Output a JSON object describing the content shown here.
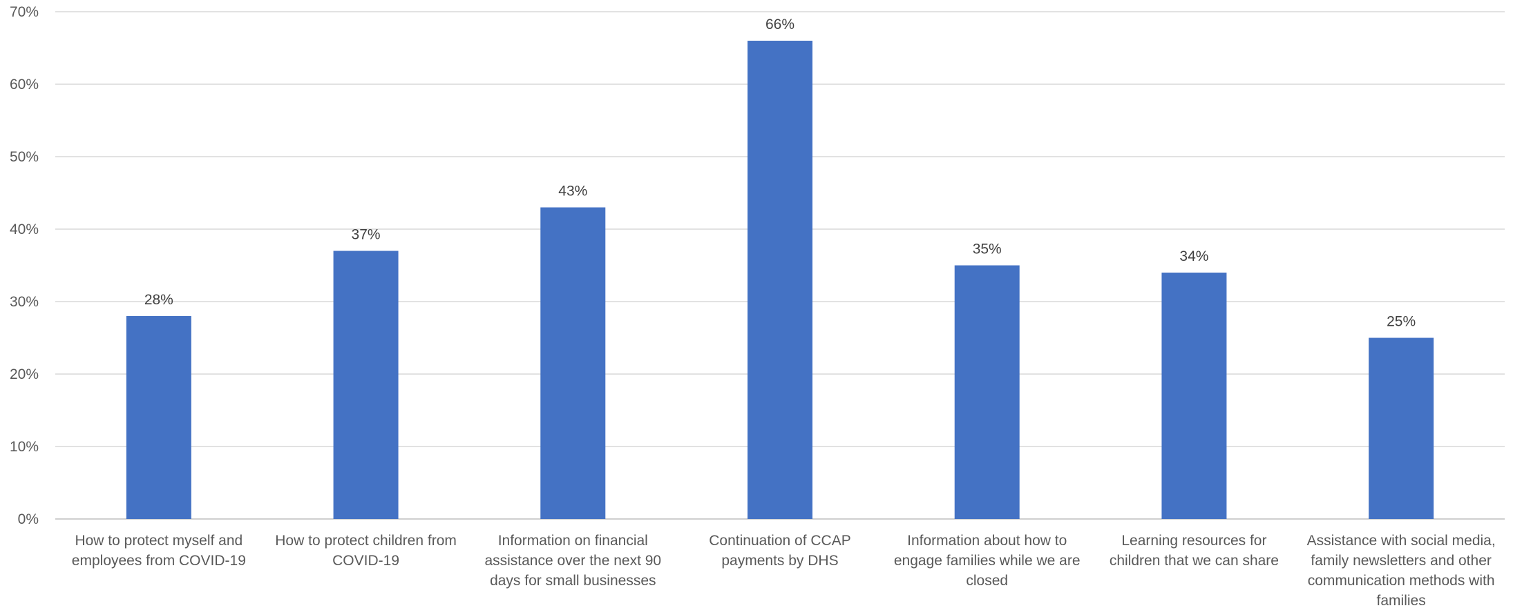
{
  "chart_data": {
    "type": "bar",
    "title": "",
    "xlabel": "",
    "ylabel": "",
    "categories": [
      "How to protect myself and employees from COVID-19",
      "How to protect children from COVID-19",
      "Information on financial assistance over the next 90 days for small businesses",
      "Continuation of CCAP payments by DHS",
      "Information about how to engage families while we are closed",
      "Learning resources for children that we can share",
      "Assistance with social media, family newsletters and other communication methods with families"
    ],
    "category_lines": [
      [
        "How to protect myself and",
        "employees from COVID-19"
      ],
      [
        "How to protect children from",
        "COVID-19"
      ],
      [
        "Information on financial",
        "assistance over the next 90",
        "days for small businesses"
      ],
      [
        "Continuation of CCAP",
        "payments by DHS"
      ],
      [
        "Information about how to",
        "engage families while we are",
        "closed"
      ],
      [
        "Learning resources for",
        "children that we can share"
      ],
      [
        "Assistance with social media,",
        "family newsletters and other",
        "communication methods with",
        "families"
      ]
    ],
    "values": [
      28,
      37,
      43,
      66,
      35,
      34,
      25
    ],
    "data_labels": [
      "28%",
      "37%",
      "43%",
      "66%",
      "35%",
      "34%",
      "25%"
    ],
    "ylim": [
      0,
      70
    ],
    "yticks": [
      0,
      10,
      20,
      30,
      40,
      50,
      60,
      70
    ],
    "ytick_labels": [
      "0%",
      "10%",
      "20%",
      "30%",
      "40%",
      "50%",
      "60%",
      "70%"
    ],
    "grid": true,
    "legend": "none",
    "colors": {
      "bar": "#4472C4",
      "grid": "#D9D9D9",
      "text": "#595959"
    }
  }
}
